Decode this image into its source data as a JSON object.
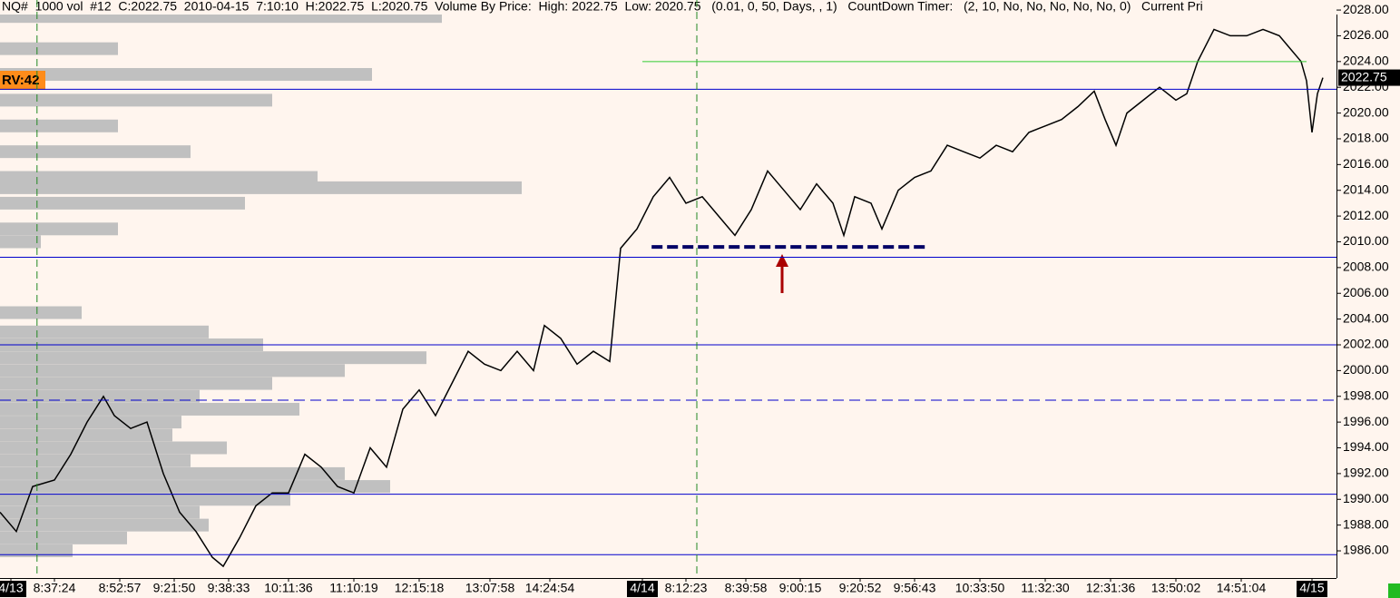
{
  "chart_data": {
    "type": "line",
    "title": "NQ#  1000 vol  #12  C:2022.75  2010-04-15  7:10:10  H:2022.75  L:2020.75  Volume By Price:  High: 2022.75  Low: 2020.75   (0.01, 0, 50, Days, , 1)   CountDown Timer:   (2, 10, No, No, No, No, No, 0)   Current Pri",
    "rv_label": "RV:42",
    "price_tag": "2022.75",
    "xlim": [
      0,
      245.5
    ],
    "ylim": [
      1984.24,
      2028.78
    ],
    "yticks": [
      {
        "value": 2028,
        "label": "2028.00"
      },
      {
        "value": 2026,
        "label": "2026.00"
      },
      {
        "value": 2024,
        "label": "2024.00"
      },
      {
        "value": 2022,
        "label": "2022.00"
      },
      {
        "value": 2020,
        "label": "2020.00"
      },
      {
        "value": 2018,
        "label": "2018.00"
      },
      {
        "value": 2016,
        "label": "2016.00"
      },
      {
        "value": 2014,
        "label": "2014.00"
      },
      {
        "value": 2012,
        "label": "2012.00"
      },
      {
        "value": 2010,
        "label": "2010.00"
      },
      {
        "value": 2008,
        "label": "2008.00"
      },
      {
        "value": 2006,
        "label": "2006.00"
      },
      {
        "value": 2004,
        "label": "2004.00"
      },
      {
        "value": 2002,
        "label": "2002.00"
      },
      {
        "value": 2000,
        "label": "2000.00"
      },
      {
        "value": 1998,
        "label": "1998.00"
      },
      {
        "value": 1996,
        "label": "1996.00"
      },
      {
        "value": 1994,
        "label": "1994.00"
      },
      {
        "value": 1992,
        "label": "1992.00"
      },
      {
        "value": 1990,
        "label": "1990.00"
      },
      {
        "value": 1988,
        "label": "1988.00"
      },
      {
        "value": 1986,
        "label": "1986.00"
      }
    ],
    "xticks": [
      {
        "value": 2,
        "label": "4/13"
      },
      {
        "value": 10,
        "label": "8:37:24"
      },
      {
        "value": 22,
        "label": "8:52:57"
      },
      {
        "value": 32,
        "label": "9:21:50"
      },
      {
        "value": 42,
        "label": "9:38:33"
      },
      {
        "value": 53,
        "label": "10:11:36"
      },
      {
        "value": 65,
        "label": "11:10:19"
      },
      {
        "value": 77,
        "label": "12:15:18"
      },
      {
        "value": 90,
        "label": "13:07:58"
      },
      {
        "value": 101,
        "label": "14:24:54"
      },
      {
        "value": 118,
        "label": "4/14"
      },
      {
        "value": 126,
        "label": "8:12:23"
      },
      {
        "value": 137,
        "label": "8:39:58"
      },
      {
        "value": 147,
        "label": "9:00:15"
      },
      {
        "value": 158,
        "label": "9:20:52"
      },
      {
        "value": 168,
        "label": "9:56:43"
      },
      {
        "value": 180,
        "label": "10:33:50"
      },
      {
        "value": 192,
        "label": "11:32:30"
      },
      {
        "value": 204,
        "label": "12:31:36"
      },
      {
        "value": 216,
        "label": "13:50:02"
      },
      {
        "value": 228,
        "label": "14:51:04"
      },
      {
        "value": 241,
        "label": "4/15"
      }
    ],
    "series": [
      {
        "name": "NQ#",
        "color": "#000000",
        "x": [
          0,
          3,
          6,
          10,
          13,
          16,
          19,
          21,
          24,
          27,
          30,
          33,
          36,
          39,
          41,
          44,
          47,
          50,
          53,
          56,
          59,
          62,
          65,
          68,
          71,
          74,
          77,
          80,
          83,
          86,
          89,
          92,
          95,
          98,
          100,
          103,
          106,
          109,
          112,
          114,
          117,
          120,
          123,
          126,
          129,
          132,
          135,
          138,
          141,
          144,
          147,
          150,
          153,
          155,
          157,
          160,
          162,
          165,
          168,
          171,
          174,
          177,
          180,
          183,
          186,
          189,
          192,
          195,
          198,
          201,
          203,
          205,
          207,
          210,
          213,
          216,
          218,
          220,
          223,
          226,
          229,
          232,
          235,
          237,
          239,
          240,
          241,
          242,
          243
        ],
        "values": [
          1989,
          1987.5,
          1991,
          1991.5,
          1993.5,
          1996,
          1998,
          1996.5,
          1995.5,
          1996,
          1992,
          1989,
          1987.5,
          1985.5,
          1984.8,
          1987,
          1989.5,
          1990.5,
          1990.5,
          1993.5,
          1992.5,
          1991,
          1990.5,
          1994,
          1992.5,
          1997,
          1998.5,
          1996.5,
          1999,
          2001.5,
          2000.5,
          2000,
          2001.5,
          2000,
          2003.5,
          2002.5,
          2000.5,
          2001.5,
          2000.7,
          2009.5,
          2011,
          2013.5,
          2015,
          2013,
          2013.5,
          2012,
          2010.5,
          2012.5,
          2015.5,
          2014,
          2012.5,
          2014.5,
          2013,
          2010.5,
          2013.5,
          2013,
          2011,
          2014,
          2015,
          2015.5,
          2017.5,
          2017,
          2016.5,
          2017.5,
          2017,
          2018.5,
          2019,
          2019.5,
          2020.5,
          2021.7,
          2019.5,
          2017.5,
          2020,
          2021,
          2022,
          2021,
          2021.5,
          2024,
          2026.5,
          2026,
          2026,
          2026.5,
          2026,
          2025,
          2024,
          2022.5,
          2018.5,
          2021.5,
          2022.75
        ]
      }
    ],
    "volume_profile": {
      "color": "#c0c0c0",
      "prices": [
        2027.5,
        2025,
        2023,
        2021,
        2019,
        2017,
        2015,
        2014.2,
        2013,
        2011,
        2010,
        2004.5,
        2003,
        2002,
        2001,
        2000,
        1999,
        1998,
        1997,
        1996,
        1995,
        1994,
        1993,
        1992,
        1991,
        1990,
        1989,
        1988,
        1987,
        1986
      ],
      "values": [
        487,
        130,
        410,
        300,
        130,
        210,
        350,
        575,
        270,
        130,
        45,
        90,
        230,
        290,
        470,
        380,
        300,
        220,
        330,
        200,
        190,
        250,
        210,
        380,
        430,
        320,
        220,
        230,
        140,
        80
      ]
    },
    "levels": {
      "color": "#0000cc",
      "values": [
        2021.85,
        2008.8,
        2002,
        1990.4,
        1985.7
      ],
      "dashed": [
        1997.7
      ]
    },
    "target_line": {
      "color": "#33cc33",
      "value": 2024,
      "x": [
        118,
        240
      ]
    },
    "support_line": {
      "color": "#000066",
      "value": 2009.6,
      "x": [
        119.7,
        170
      ]
    },
    "session_lines": {
      "color": "#228822",
      "x": [
        6.8,
        128
      ]
    }
  }
}
